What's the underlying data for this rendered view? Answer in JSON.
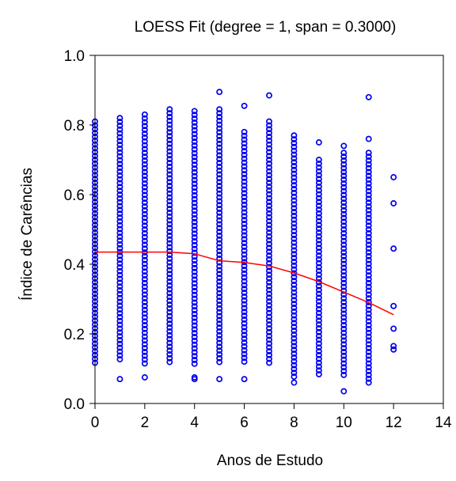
{
  "chart_data": {
    "type": "scatter",
    "title": "LOESS Fit (degree = 1, span = 0.3000)",
    "xlabel": "Anos de Estudo",
    "ylabel": "Índice de Carências",
    "xlim": [
      0,
      14
    ],
    "ylim": [
      0.0,
      1.0
    ],
    "x_ticks": [
      "0",
      "2",
      "4",
      "6",
      "8",
      "10",
      "12",
      "14"
    ],
    "y_ticks": [
      "0.0",
      "0.2",
      "0.4",
      "0.6",
      "0.8",
      "1.0"
    ],
    "grid": false,
    "legend": "none",
    "colors": {
      "points": "#0000ee",
      "fit": "#ff0000",
      "axis": "#000000"
    },
    "scatter_columns": [
      {
        "x": 0,
        "min": 0.11,
        "max": 0.81,
        "outliers": []
      },
      {
        "x": 1,
        "min": 0.12,
        "max": 0.82,
        "outliers": [
          0.07
        ]
      },
      {
        "x": 2,
        "min": 0.11,
        "max": 0.83,
        "outliers": [
          0.075
        ]
      },
      {
        "x": 3,
        "min": 0.11,
        "max": 0.845,
        "outliers": []
      },
      {
        "x": 4,
        "min": 0.11,
        "max": 0.84,
        "outliers": [
          0.07,
          0.075
        ]
      },
      {
        "x": 5,
        "min": 0.11,
        "max": 0.845,
        "outliers": [
          0.07,
          0.895
        ]
      },
      {
        "x": 6,
        "min": 0.12,
        "max": 0.78,
        "outliers": [
          0.07,
          0.855
        ]
      },
      {
        "x": 7,
        "min": 0.11,
        "max": 0.81,
        "outliers": [
          0.885
        ]
      },
      {
        "x": 8,
        "min": 0.07,
        "max": 0.77,
        "outliers": [
          0.06
        ]
      },
      {
        "x": 9,
        "min": 0.08,
        "max": 0.7,
        "outliers": [
          0.75
        ]
      },
      {
        "x": 10,
        "min": 0.08,
        "max": 0.72,
        "outliers": [
          0.035,
          0.74
        ]
      },
      {
        "x": 11,
        "min": 0.05,
        "max": 0.72,
        "outliers": [
          0.76,
          0.88
        ]
      },
      {
        "x": 12,
        "min": null,
        "max": null,
        "outliers": [
          0.155,
          0.165,
          0.215,
          0.28,
          0.445,
          0.575,
          0.65
        ]
      }
    ],
    "loess_fit": {
      "x": [
        0,
        1,
        2,
        3,
        4,
        5,
        6,
        7,
        8,
        9,
        10,
        11,
        12
      ],
      "y": [
        0.435,
        0.435,
        0.435,
        0.435,
        0.43,
        0.41,
        0.405,
        0.395,
        0.375,
        0.35,
        0.32,
        0.29,
        0.255
      ]
    }
  }
}
